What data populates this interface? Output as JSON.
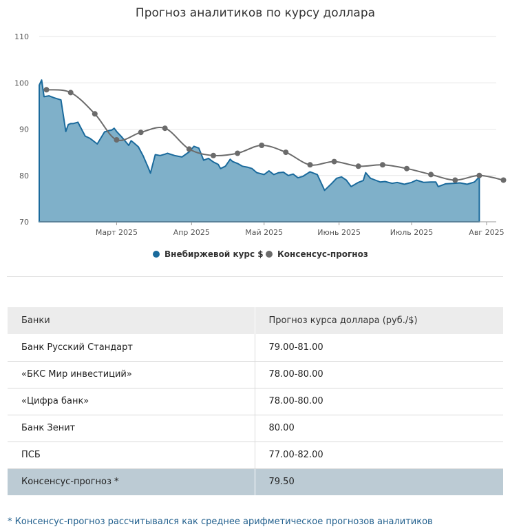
{
  "chart_data": {
    "type": "area",
    "title": "Прогноз аналитиков по курсу доллара",
    "ylim": [
      70,
      110
    ],
    "yticks": [
      70,
      80,
      90,
      100,
      110
    ],
    "xlim": [
      "2025-01-28",
      "2025-08-05"
    ],
    "xticks": [
      {
        "date": "2025-03-01",
        "label": "Март 2025"
      },
      {
        "date": "2025-04-01",
        "label": "Апр 2025"
      },
      {
        "date": "2025-05-01",
        "label": "Май 2025"
      },
      {
        "date": "2025-06-01",
        "label": "Июнь 2025"
      },
      {
        "date": "2025-07-01",
        "label": "Июль 2025"
      },
      {
        "date": "2025-08-01",
        "label": "Авг 2025"
      }
    ],
    "grid": true,
    "legend_position": "bottom",
    "colors": {
      "otc": "#1a6a9c",
      "otc_fill": "#7fb0c9",
      "consensus": "#6b6b6b",
      "grid": "#e6e6e6"
    },
    "series": [
      {
        "name": "Внебиржевой курс $",
        "kind": "area",
        "x": [
          "2025-01-28",
          "2025-01-29",
          "2025-01-30",
          "2025-02-01",
          "2025-02-03",
          "2025-02-06",
          "2025-02-08",
          "2025-02-09",
          "2025-02-10",
          "2025-02-11",
          "2025-02-13",
          "2025-02-16",
          "2025-02-18",
          "2025-02-19",
          "2025-02-21",
          "2025-02-24",
          "2025-02-26",
          "2025-02-27",
          "2025-02-28",
          "2025-03-01",
          "2025-03-03",
          "2025-03-06",
          "2025-03-07",
          "2025-03-08",
          "2025-03-10",
          "2025-03-12",
          "2025-03-14",
          "2025-03-15",
          "2025-03-17",
          "2025-03-19",
          "2025-03-21",
          "2025-03-22",
          "2025-03-25",
          "2025-03-28",
          "2025-03-31",
          "2025-04-02",
          "2025-04-04",
          "2025-04-06",
          "2025-04-08",
          "2025-04-10",
          "2025-04-12",
          "2025-04-13",
          "2025-04-15",
          "2025-04-17",
          "2025-04-18",
          "2025-04-20",
          "2025-04-22",
          "2025-04-24",
          "2025-04-26",
          "2025-04-28",
          "2025-05-01",
          "2025-05-03",
          "2025-05-05",
          "2025-05-07",
          "2025-05-09",
          "2025-05-11",
          "2025-05-13",
          "2025-05-15",
          "2025-05-17",
          "2025-05-20",
          "2025-05-23",
          "2025-05-26",
          "2025-05-29",
          "2025-05-31",
          "2025-06-02",
          "2025-06-04",
          "2025-06-06",
          "2025-06-09",
          "2025-06-11",
          "2025-06-12",
          "2025-06-14",
          "2025-06-16",
          "2025-06-18",
          "2025-06-20",
          "2025-06-23",
          "2025-06-25",
          "2025-06-28",
          "2025-07-01",
          "2025-07-03",
          "2025-07-06",
          "2025-07-09",
          "2025-07-11",
          "2025-07-12",
          "2025-07-15",
          "2025-07-18",
          "2025-07-21",
          "2025-07-24",
          "2025-07-27",
          "2025-07-29"
        ],
        "values": [
          99.5,
          100.6,
          97.0,
          97.2,
          96.8,
          96.3,
          89.5,
          91.0,
          91.2,
          91.2,
          91.5,
          88.5,
          88.0,
          87.6,
          86.8,
          89.4,
          89.7,
          89.8,
          90.2,
          89.5,
          88.4,
          86.5,
          87.5,
          87.1,
          86.2,
          84.2,
          81.8,
          80.5,
          84.5,
          84.3,
          84.6,
          84.8,
          84.3,
          84.0,
          85.1,
          86.3,
          85.9,
          83.3,
          83.7,
          82.9,
          82.4,
          81.5,
          82.0,
          83.5,
          83.0,
          82.6,
          82.0,
          81.8,
          81.5,
          80.6,
          80.2,
          81.0,
          80.2,
          80.6,
          80.7,
          80.0,
          80.3,
          79.5,
          79.8,
          80.8,
          80.2,
          76.8,
          78.3,
          79.4,
          79.7,
          79.0,
          77.6,
          78.5,
          78.9,
          80.6,
          79.4,
          79.0,
          78.6,
          78.7,
          78.3,
          78.5,
          78.1,
          78.5,
          79.0,
          78.5,
          78.6,
          78.6,
          77.6,
          78.2,
          78.3,
          78.4,
          78.1,
          78.6,
          79.7
        ]
      },
      {
        "name": "Консенсус-прогноз",
        "kind": "line",
        "x": [
          "2025-01-31",
          "2025-02-10",
          "2025-02-20",
          "2025-03-01",
          "2025-03-11",
          "2025-03-21",
          "2025-03-31",
          "2025-04-10",
          "2025-04-20",
          "2025-04-30",
          "2025-05-10",
          "2025-05-20",
          "2025-05-30",
          "2025-06-09",
          "2025-06-19",
          "2025-06-29",
          "2025-07-09",
          "2025-07-19",
          "2025-07-29",
          "2025-08-08"
        ],
        "values": [
          98.5,
          97.9,
          93.3,
          87.7,
          89.3,
          90.2,
          85.7,
          84.3,
          84.8,
          86.5,
          85.0,
          82.3,
          83.0,
          82.0,
          82.3,
          81.5,
          80.2,
          79.0,
          80.0,
          79.0
        ]
      }
    ]
  },
  "table": {
    "headers": [
      "Банки",
      "Прогноз курса доллара (руб./$)"
    ],
    "rows": [
      [
        "Банк Русский Стандарт",
        "79.00-81.00"
      ],
      [
        "«БКС Мир инвестиций»",
        "78.00-80.00"
      ],
      [
        "«Цифра банк»",
        "78.00-80.00"
      ],
      [
        "Банк Зенит",
        "80.00"
      ],
      [
        "ПСБ",
        "77.00-82.00"
      ]
    ],
    "consensus_row": [
      "Консенсус-прогноз *",
      "79.50"
    ]
  },
  "footnote": "* Консенсус-прогноз рассчитывался как среднее арифметическое прогнозов аналитиков"
}
